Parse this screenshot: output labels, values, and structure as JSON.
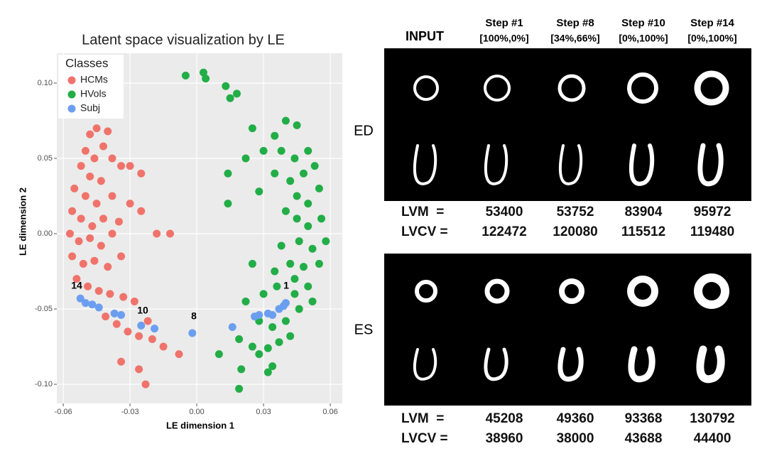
{
  "chart_data": {
    "type": "scatter",
    "title": "Latent space visualization by LE",
    "xlabel": "LE dimension 1",
    "ylabel": "LE dimension 2",
    "legend_title": "Classes",
    "xlim": [
      -0.0629,
      0.0654
    ],
    "ylim": [
      -0.1127,
      0.1198
    ],
    "xticks": [
      -0.06,
      -0.03,
      {
        "value": 0,
        "label": "0.00"
      },
      0.03,
      0.06
    ],
    "yticks": [
      {
        "value": -0.1,
        "label": "-0.10"
      },
      -0.05,
      {
        "value": 0,
        "label": "0.00"
      },
      0.05,
      {
        "value": 0.1,
        "label": "0.10"
      }
    ],
    "grid": true,
    "legend": "top-left",
    "series": [
      {
        "name": "HCMs",
        "color": "#f0736b",
        "x": [
          -0.048,
          -0.045,
          -0.04,
          -0.042,
          -0.05,
          -0.046,
          -0.038,
          -0.034,
          -0.052,
          -0.048,
          -0.043,
          -0.055,
          -0.05,
          -0.045,
          -0.038,
          -0.03,
          -0.056,
          -0.052,
          -0.047,
          -0.042,
          -0.035,
          -0.025,
          -0.057,
          -0.053,
          -0.048,
          -0.043,
          -0.038,
          -0.018,
          -0.012,
          -0.056,
          -0.051,
          -0.046,
          -0.04,
          -0.034,
          -0.054,
          -0.049,
          -0.044,
          -0.039,
          -0.033,
          -0.028,
          -0.041,
          -0.036,
          -0.031,
          -0.026,
          -0.022,
          -0.02,
          -0.015,
          -0.034,
          -0.026,
          -0.023,
          -0.008,
          -0.03,
          -0.025
        ],
        "y": [
          0.066,
          0.07,
          0.068,
          0.058,
          0.055,
          0.05,
          0.05,
          0.045,
          0.045,
          0.038,
          0.035,
          0.03,
          0.025,
          0.02,
          0.025,
          0.02,
          0.015,
          0.01,
          0.005,
          0.01,
          0.008,
          0.015,
          0,
          -0.005,
          -0.003,
          -0.008,
          0,
          0,
          0,
          -0.015,
          -0.02,
          -0.018,
          -0.022,
          -0.015,
          -0.03,
          -0.035,
          -0.038,
          -0.04,
          -0.042,
          -0.045,
          -0.055,
          -0.06,
          -0.065,
          -0.068,
          -0.058,
          -0.07,
          -0.075,
          -0.085,
          -0.09,
          -0.1,
          -0.08,
          0.045,
          0.04
        ]
      },
      {
        "name": "HVols",
        "color": "#22ad47",
        "x": [
          -0.005,
          0.003,
          0.004,
          0.013,
          0.015,
          0.018,
          0.025,
          0.035,
          0.04,
          0.045,
          0.03,
          0.038,
          0.044,
          0.05,
          0.022,
          0.035,
          0.042,
          0.048,
          0.053,
          0.028,
          0.014,
          0.045,
          0.05,
          0.055,
          0.056,
          0.05,
          0.045,
          0.04,
          0.058,
          0.052,
          0.046,
          0.038,
          0.055,
          0.048,
          0.042,
          0.035,
          0.025,
          0.05,
          0.044,
          0.036,
          0.03,
          0.022,
          0.046,
          0.04,
          0.034,
          0.028,
          0.042,
          0.037,
          0.032,
          0.028,
          0.034,
          0.025,
          0.019,
          0.01,
          0.02,
          0.019,
          0.032,
          0.014,
          0.044,
          0.052
        ],
        "y": [
          0.105,
          0.107,
          0.103,
          0.098,
          0.09,
          0.093,
          0.07,
          0.065,
          0.075,
          0.072,
          0.055,
          0.055,
          0.05,
          0.055,
          0.05,
          0.04,
          0.035,
          0.04,
          0.045,
          0.028,
          0.04,
          0.025,
          0.02,
          0.03,
          0.01,
          0.005,
          0.01,
          0.015,
          -0.005,
          -0.01,
          -0.005,
          -0.008,
          -0.02,
          -0.022,
          -0.02,
          -0.025,
          -0.02,
          -0.035,
          -0.04,
          -0.035,
          -0.04,
          -0.045,
          -0.05,
          -0.058,
          -0.062,
          -0.058,
          -0.068,
          -0.072,
          -0.076,
          -0.08,
          -0.088,
          -0.075,
          -0.07,
          -0.08,
          -0.09,
          -0.103,
          -0.092,
          0.02,
          -0.03,
          -0.045
        ]
      },
      {
        "name": "Subj",
        "color": "#6b9ef0",
        "x": [
          -0.0523,
          -0.05,
          -0.047,
          -0.044,
          -0.037,
          -0.034,
          -0.025,
          -0.019,
          -0.002,
          0.016,
          0.026,
          0.028,
          0.032,
          0.034,
          0.037,
          0.039,
          0.04
        ],
        "y": [
          -0.043,
          -0.046,
          -0.047,
          -0.049,
          -0.053,
          -0.054,
          -0.061,
          -0.063,
          -0.066,
          -0.062,
          -0.055,
          -0.054,
          -0.053,
          -0.054,
          -0.05,
          -0.048,
          -0.046
        ]
      }
    ],
    "annotations": [
      "14",
      "10",
      "8",
      "1"
    ]
  },
  "panel": {
    "input_label": "INPUT",
    "steps": [
      {
        "name": "Step #1",
        "ratio": "[100%,0%]"
      },
      {
        "name": "Step #8",
        "ratio": "[34%,66%]"
      },
      {
        "name": "Step #10",
        "ratio": "[0%,100%]"
      },
      {
        "name": "Step #14",
        "ratio": "[0%,100%]"
      }
    ],
    "phases": [
      {
        "name": "ED",
        "rows": [
          {
            "label": "LVM  =",
            "values": [
              53400,
              53752,
              83904,
              95972
            ]
          },
          {
            "label": "LVCV =",
            "values": [
              122472,
              120080,
              115512,
              119480
            ]
          }
        ]
      },
      {
        "name": "ES",
        "rows": [
          {
            "label": "LVM  =",
            "values": [
              45208,
              49360,
              93368,
              130792
            ]
          },
          {
            "label": "LVCV =",
            "values": [
              38960,
              38000,
              43688,
              44400
            ]
          }
        ]
      }
    ]
  }
}
